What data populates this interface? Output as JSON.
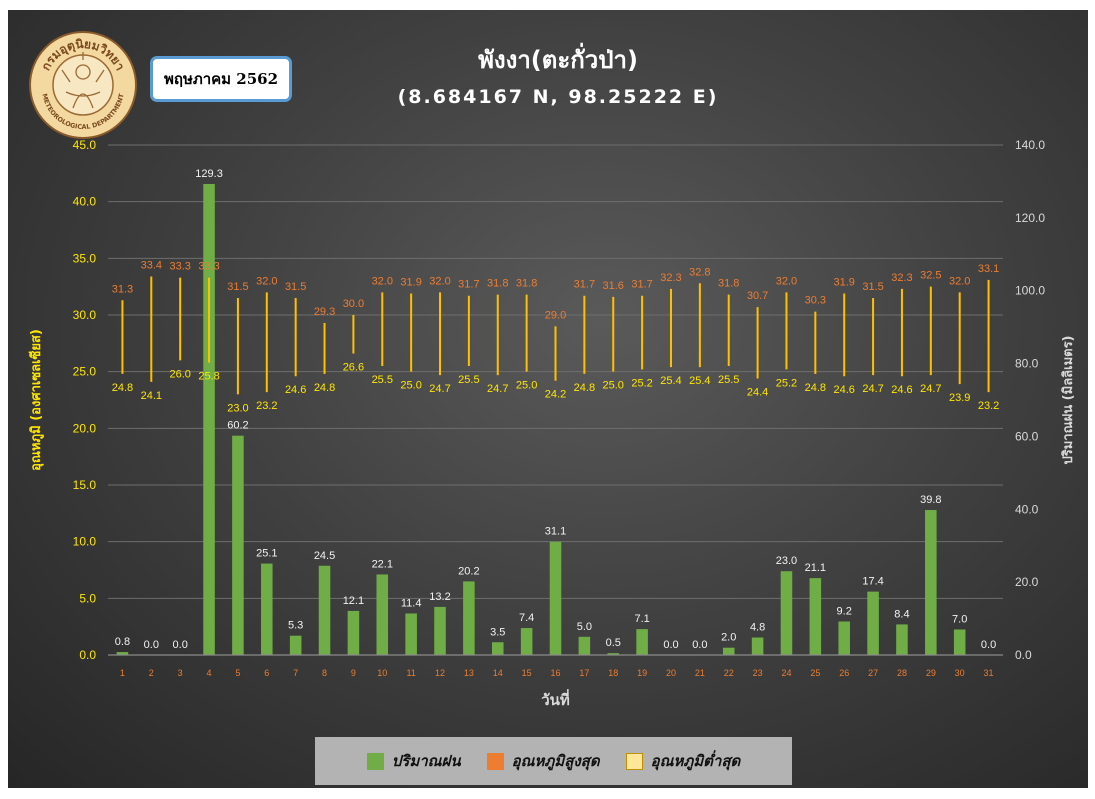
{
  "header": {
    "title": "พังงา(ตะกั่วป่า)",
    "coords": "(8.684167 N, 98.25222 E)",
    "month": "พฤษภาคม 2562",
    "logo_text_top": "กรมอุตุนิยมวิทยา",
    "logo_text_bottom": "METEOROLOGICAL DEPARTMENT"
  },
  "colors": {
    "rain": "#70ad47",
    "tmax_label": "#ed7d31",
    "tmin_label": "#ffe600",
    "range_line": "#ffc000",
    "left_axis": "#ffe600",
    "right_axis": "#d9d9d9",
    "x_ticks": "#ed7d31"
  },
  "legend": [
    {
      "label": "ปริมาณฝน",
      "color": "#70ad47",
      "border": "#70ad47"
    },
    {
      "label": "อุณหภูมิสูงสุด",
      "color": "#ed7d31",
      "border": "#ed7d31"
    },
    {
      "label": "อุณหภูมิต่ำสุด",
      "color": "#ffe699",
      "border": "#bf9000"
    }
  ],
  "chart_data": {
    "type": "bar",
    "xlabel": "วันที่",
    "ylabel_left": "อุณหภูมิ (องศาเซลเซียส)",
    "ylabel_right": "ปริมาณฝน (มิลลิเมตร)",
    "ylim_left": [
      0,
      45
    ],
    "yticks_left": [
      "0.0",
      "5.0",
      "10.0",
      "15.0",
      "20.0",
      "25.0",
      "30.0",
      "35.0",
      "40.0",
      "45.0"
    ],
    "ylim_right": [
      0,
      140
    ],
    "yticks_right": [
      "0.0",
      "20.0",
      "40.0",
      "60.0",
      "80.0",
      "100.0",
      "120.0",
      "140.0"
    ],
    "categories": [
      "1",
      "2",
      "3",
      "4",
      "5",
      "6",
      "7",
      "8",
      "9",
      "10",
      "11",
      "12",
      "13",
      "14",
      "15",
      "16",
      "17",
      "18",
      "19",
      "20",
      "21",
      "22",
      "23",
      "24",
      "25",
      "26",
      "27",
      "28",
      "29",
      "30",
      "31"
    ],
    "series": [
      {
        "name": "ปริมาณฝน",
        "axis": "right",
        "type": "bar",
        "values": [
          0.8,
          0.0,
          0.0,
          129.3,
          60.2,
          25.1,
          5.3,
          24.5,
          12.1,
          22.1,
          11.4,
          13.2,
          20.2,
          3.5,
          7.4,
          31.1,
          5.0,
          0.5,
          7.1,
          0.0,
          0.0,
          2.0,
          4.8,
          23.0,
          21.1,
          9.2,
          17.4,
          8.4,
          39.8,
          7.0,
          0.0
        ]
      },
      {
        "name": "อุณหภูมิสูงสุด",
        "axis": "left",
        "type": "range-high",
        "values": [
          31.3,
          33.4,
          33.3,
          33.3,
          31.5,
          32.0,
          31.5,
          29.3,
          30.0,
          32.0,
          31.9,
          32.0,
          31.7,
          31.8,
          31.8,
          29.0,
          31.7,
          31.6,
          31.7,
          32.3,
          32.8,
          31.8,
          30.7,
          32.0,
          30.3,
          31.9,
          31.5,
          32.3,
          32.5,
          32.0,
          33.1
        ]
      },
      {
        "name": "อุณหภูมิต่ำสุด",
        "axis": "left",
        "type": "range-low",
        "values": [
          24.8,
          24.1,
          26.0,
          25.8,
          23.0,
          23.2,
          24.6,
          24.8,
          26.6,
          25.5,
          25.0,
          24.7,
          25.5,
          24.7,
          25.0,
          24.2,
          24.8,
          25.0,
          25.2,
          25.4,
          25.4,
          25.5,
          24.4,
          25.2,
          24.8,
          24.6,
          24.7,
          24.6,
          24.7,
          23.9,
          23.2
        ]
      }
    ],
    "grid": true,
    "legend_position": "bottom"
  }
}
